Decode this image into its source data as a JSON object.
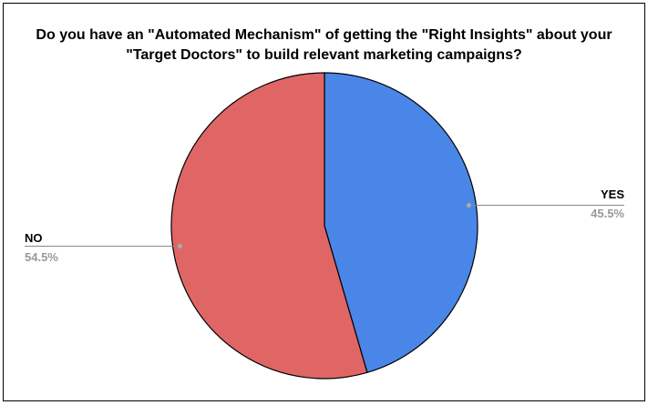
{
  "chart_data": {
    "type": "pie",
    "title": "Do you have an \"Automated Mechanism\" of getting the \"Right Insights\" about your \"Target Doctors\" to build relevant marketing campaigns?",
    "categories": [
      "YES",
      "NO"
    ],
    "values": [
      45.5,
      54.5
    ],
    "value_labels": [
      "45.5%",
      "54.5%"
    ],
    "colors": [
      "#4a86e8",
      "#e06666"
    ]
  }
}
